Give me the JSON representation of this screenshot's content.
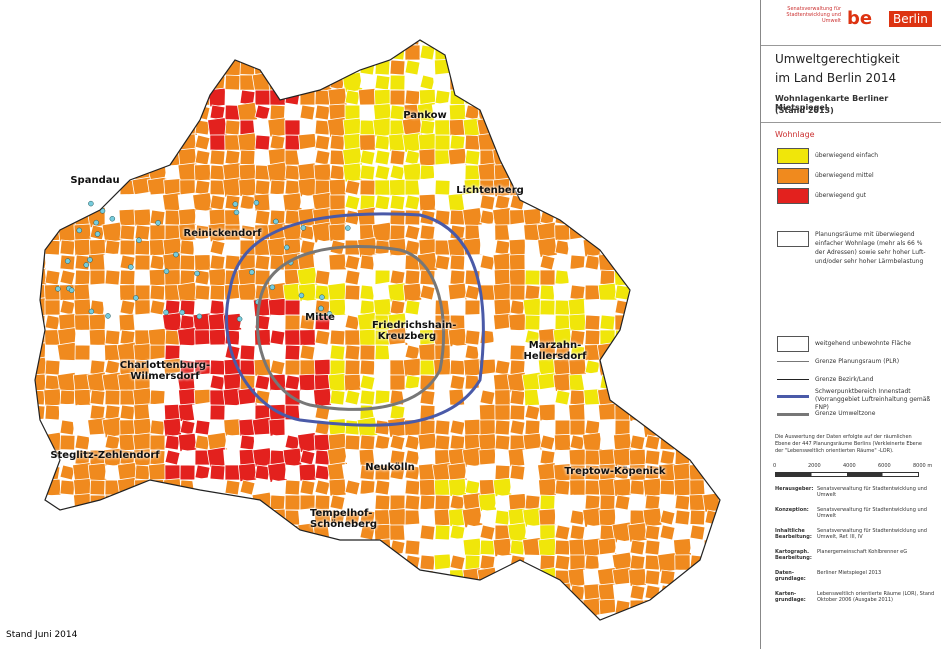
{
  "header": {
    "agency": "Senatsverwaltung für Stadtentwicklung und Umwelt",
    "logo_be": "be",
    "logo_city": "Berlin"
  },
  "title": {
    "line1": "Umweltgerechtigkeit",
    "line2": "im Land Berlin 2014",
    "subtitle1": "Wohnlagenkarte Berliner Mietspiegel",
    "subtitle2": "(Stand 2013)"
  },
  "legend": {
    "heading": "Wohnlage",
    "classes": [
      {
        "label": "überwiegend einfach",
        "color": "#f0e60a"
      },
      {
        "label": "überwiegend mittel",
        "color": "#f08a1e"
      },
      {
        "label": "überwiegend gut",
        "color": "#e3211e"
      }
    ],
    "marker_note": "Planungsräume mit überwiegend einfacher Wohnlage (mehr als 66 % der Adressen) sowie sehr hoher Luft- und/oder sehr hoher Lärmbelastung",
    "lines": [
      {
        "label": "weitgehend unbewohnte Fläche"
      },
      {
        "label": "Grenze Planungsraum (PLR)"
      },
      {
        "label": "Grenze Bezirk/Land"
      },
      {
        "label": "Schwerpunktbereich Innenstadt (Vorranggebiet Luftreinhaltung gemäß FNP)"
      },
      {
        "label": "Grenze Umweltzone"
      }
    ]
  },
  "note": "Die Auswertung der Daten erfolgte auf der räumlichen Ebene der 447 Planungsräume Berlins (Verkleinerte Ebene der \"Lebensweltlich orientierten Räume\" -LOR).",
  "scale": {
    "labels": [
      "0",
      "2000",
      "4000",
      "6000",
      "8000 m"
    ]
  },
  "credits": [
    {
      "label": "Herausgeber:",
      "text": "Senatsverwaltung für Stadtentwicklung und Umwelt"
    },
    {
      "label": "Konzeption:",
      "text": "Senatsverwaltung für Stadtentwicklung und Umwelt"
    },
    {
      "label": "Inhaltliche Bearbeitung:",
      "text": "Senatsverwaltung für Stadtentwicklung und Umwelt, Ref. III, IV"
    },
    {
      "label": "Kartograph. Bearbeitung:",
      "text": "Planergemeinschaft Kohlbrenner eG"
    },
    {
      "label": "Daten-grundlage:",
      "text": "Berliner Mietspiegel 2013"
    },
    {
      "label": "Karten-grundlage:",
      "text": "Lebensweltlich orientierte Räume (LOR), Stand Oktober 2006 (Ausgabe 2011)"
    }
  ],
  "footer": "Stand Juni 2014",
  "districts": [
    "Pankow",
    "Lichtenberg",
    "Spandau",
    "Reinickendorf",
    "Mitte",
    "Friedrichshain-Kreuzberg",
    "Marzahn-Hellersdorf",
    "Charlottenburg-Wilmersdorf",
    "Steglitz-Zehlendorf",
    "Neukölln",
    "Treptow-Köpenick",
    "Tempelhof-Schöneberg"
  ]
}
